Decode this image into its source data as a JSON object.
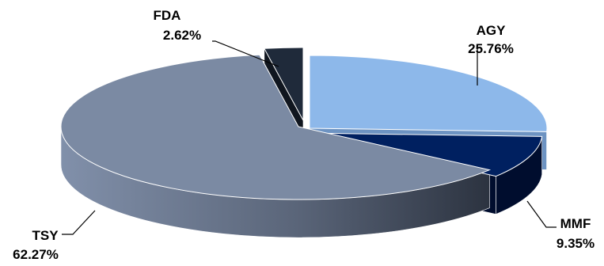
{
  "chart_data": {
    "type": "pie",
    "style": "3d-exploded",
    "slices": [
      {
        "label": "AGY",
        "value": 25.76,
        "value_label": "25.76%",
        "color": "#8db8ea",
        "side_color": "#6d93c2"
      },
      {
        "label": "MMF",
        "value": 9.35,
        "value_label": "9.35%",
        "color": "#002060",
        "side_color": "#000d2e"
      },
      {
        "label": "TSY",
        "value": 62.27,
        "value_label": "62.27%",
        "color": "#7b8aa3",
        "side_color": "#5d6980"
      },
      {
        "label": "FDA",
        "value": 2.62,
        "value_label": "2.62%",
        "color": "#1f2a3a",
        "side_color": "#10161f"
      }
    ]
  }
}
